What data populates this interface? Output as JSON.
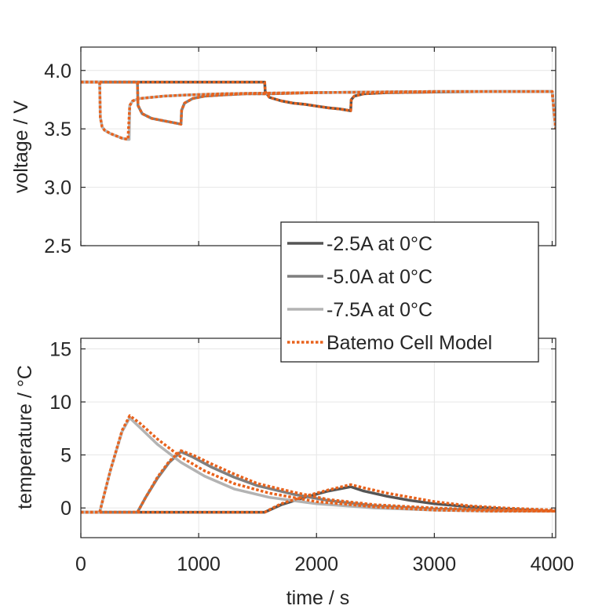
{
  "chart_data": [
    {
      "type": "line",
      "ylabel": "voltage / V",
      "xlabel": "",
      "xlim": [
        0,
        4030
      ],
      "ylim": [
        2.5,
        4.2
      ],
      "xticks": [
        0,
        1000,
        2000,
        3000,
        4000
      ],
      "yticks": [
        2.5,
        3.0,
        3.5,
        4.0
      ],
      "ytick_labels": [
        "2.5",
        "3.0",
        "3.5",
        "4.0"
      ],
      "grid": true,
      "series": [
        {
          "name": "-2.5A at 0°C",
          "color": "#555555",
          "x": [
            0,
            1560,
            1565,
            1600,
            1700,
            1800,
            1900,
            2000,
            2100,
            2200,
            2290,
            2295,
            2320,
            2400,
            2600,
            3000,
            3500,
            4000,
            4030
          ],
          "y": [
            3.9,
            3.9,
            3.82,
            3.77,
            3.74,
            3.72,
            3.71,
            3.695,
            3.68,
            3.67,
            3.655,
            3.75,
            3.78,
            3.8,
            3.81,
            3.815,
            3.82,
            3.82,
            3.5
          ]
        },
        {
          "name": "-5.0A at 0°C",
          "color": "#7f7f7f",
          "x": [
            0,
            480,
            485,
            520,
            600,
            700,
            800,
            850,
            855,
            880,
            950,
            1050,
            1200,
            1400,
            1600,
            2000,
            2500,
            3000,
            4000,
            4030
          ],
          "y": [
            3.9,
            3.9,
            3.7,
            3.63,
            3.59,
            3.57,
            3.55,
            3.54,
            3.66,
            3.72,
            3.76,
            3.78,
            3.79,
            3.8,
            3.8,
            3.81,
            3.815,
            3.82,
            3.82,
            3.5
          ]
        },
        {
          "name": "-7.5A at 0°C",
          "color": "#b3b3b3",
          "x": [
            0,
            160,
            165,
            180,
            200,
            250,
            300,
            350,
            400,
            410,
            415,
            440,
            500,
            600,
            700,
            900,
            1200,
            1500,
            2000,
            2500,
            3000,
            4000,
            4030
          ],
          "y": [
            3.9,
            3.9,
            3.6,
            3.52,
            3.49,
            3.46,
            3.44,
            3.42,
            3.41,
            3.41,
            3.7,
            3.74,
            3.76,
            3.77,
            3.78,
            3.79,
            3.8,
            3.805,
            3.81,
            3.815,
            3.82,
            3.82,
            3.5
          ]
        },
        {
          "name": "Batemo Cell Model",
          "color": "#e8621c",
          "dashed": true,
          "x": [
            0,
            160,
            165,
            180,
            200,
            250,
            300,
            350,
            400,
            415,
            440,
            500,
            600,
            700,
            900,
            1200,
            1500,
            2000,
            2500,
            3000,
            4000,
            4030
          ],
          "y": [
            3.9,
            3.9,
            3.6,
            3.52,
            3.49,
            3.46,
            3.44,
            3.42,
            3.41,
            3.7,
            3.74,
            3.76,
            3.77,
            3.78,
            3.79,
            3.8,
            3.805,
            3.81,
            3.815,
            3.82,
            3.82,
            3.5
          ]
        },
        {
          "name": "Batemo Cell Model",
          "color": "#e8621c",
          "dashed": true,
          "x": [
            0,
            480,
            485,
            520,
            600,
            700,
            800,
            850,
            855,
            880,
            950,
            1050,
            1200,
            1400,
            1600,
            2000
          ],
          "y": [
            3.9,
            3.9,
            3.7,
            3.63,
            3.59,
            3.57,
            3.55,
            3.54,
            3.66,
            3.72,
            3.76,
            3.78,
            3.79,
            3.8,
            3.8,
            3.81
          ]
        },
        {
          "name": "Batemo Cell Model",
          "color": "#e8621c",
          "dashed": true,
          "x": [
            0,
            1560,
            1565,
            1600,
            1700,
            1800,
            1900,
            2000,
            2100,
            2200,
            2290,
            2295,
            2320,
            2400,
            2600,
            3000
          ],
          "y": [
            3.9,
            3.9,
            3.82,
            3.77,
            3.74,
            3.72,
            3.71,
            3.695,
            3.68,
            3.67,
            3.655,
            3.75,
            3.78,
            3.8,
            3.81,
            3.815
          ]
        }
      ]
    },
    {
      "type": "line",
      "ylabel": "temperature / °C",
      "xlabel": "time / s",
      "xlim": [
        0,
        4030
      ],
      "ylim": [
        -2.8,
        16
      ],
      "xticks": [
        0,
        1000,
        2000,
        3000,
        4000
      ],
      "xtick_labels": [
        "0",
        "1000",
        "2000",
        "3000",
        "4000"
      ],
      "yticks": [
        0,
        5,
        10,
        15
      ],
      "ytick_labels": [
        "0",
        "5",
        "10",
        "15"
      ],
      "grid": true,
      "series": [
        {
          "name": "-2.5A at 0°C",
          "color": "#555555",
          "x": [
            0,
            1560,
            1700,
            1900,
            2100,
            2290,
            2400,
            2600,
            2800,
            3000,
            3300,
            3600,
            4030
          ],
          "y": [
            -0.4,
            -0.4,
            0.3,
            1.0,
            1.6,
            2.0,
            1.6,
            1.1,
            0.7,
            0.4,
            0.1,
            -0.1,
            -0.3
          ]
        },
        {
          "name": "-5.0A at 0°C",
          "color": "#7f7f7f",
          "x": [
            0,
            480,
            550,
            650,
            750,
            850,
            950,
            1100,
            1300,
            1500,
            1800,
            2100,
            2500,
            3000,
            3500,
            4030
          ],
          "y": [
            -0.4,
            -0.4,
            1.0,
            2.8,
            4.3,
            5.3,
            4.8,
            3.9,
            2.9,
            2.1,
            1.3,
            0.7,
            0.2,
            -0.1,
            -0.2,
            -0.3
          ]
        },
        {
          "name": "-7.5A at 0°C",
          "color": "#b3b3b3",
          "x": [
            0,
            160,
            250,
            350,
            415,
            500,
            650,
            850,
            1050,
            1300,
            1600,
            2000,
            2500,
            3000,
            3500,
            4030
          ],
          "y": [
            -0.4,
            -0.4,
            3.5,
            7.2,
            8.5,
            7.6,
            6.0,
            4.3,
            3.0,
            1.8,
            1.0,
            0.4,
            0.0,
            -0.2,
            -0.3,
            -0.3
          ]
        },
        {
          "name": "Batemo Cell Model",
          "color": "#e8621c",
          "dashed": true,
          "x": [
            0,
            160,
            250,
            350,
            415,
            500,
            650,
            850,
            1050,
            1300,
            1600,
            2000,
            2500,
            3000,
            3500,
            4030
          ],
          "y": [
            -0.4,
            -0.4,
            3.5,
            7.3,
            8.7,
            8.0,
            6.5,
            4.8,
            3.5,
            2.3,
            1.4,
            0.6,
            0.1,
            -0.2,
            -0.3,
            -0.3
          ]
        },
        {
          "name": "Batemo Cell Model",
          "color": "#e8621c",
          "dashed": true,
          "x": [
            0,
            480,
            550,
            650,
            750,
            850,
            950,
            1100,
            1300,
            1500,
            1800,
            2100,
            2500,
            3000,
            3500,
            4030
          ],
          "y": [
            -0.4,
            -0.4,
            1.0,
            2.9,
            4.4,
            5.4,
            5.0,
            4.2,
            3.2,
            2.3,
            1.5,
            0.8,
            0.3,
            0.0,
            -0.2,
            -0.3
          ]
        },
        {
          "name": "Batemo Cell Model",
          "color": "#e8621c",
          "dashed": true,
          "x": [
            0,
            1560,
            1700,
            1900,
            2100,
            2290,
            2400,
            2600,
            2800,
            3000,
            3300,
            3600,
            4030
          ],
          "y": [
            -0.4,
            -0.4,
            0.4,
            1.1,
            1.7,
            2.2,
            1.9,
            1.4,
            1.0,
            0.6,
            0.2,
            0.0,
            -0.2
          ]
        }
      ]
    }
  ],
  "legend": {
    "placement": "center-right",
    "entries": [
      {
        "label": "-2.5A at 0°C",
        "color": "#555555",
        "dashed": false
      },
      {
        "label": "-5.0A at 0°C",
        "color": "#7f7f7f",
        "dashed": false
      },
      {
        "label": "-7.5A at 0°C",
        "color": "#b3b3b3",
        "dashed": false
      },
      {
        "label": "Batemo Cell Model",
        "color": "#e8621c",
        "dashed": true
      }
    ]
  }
}
